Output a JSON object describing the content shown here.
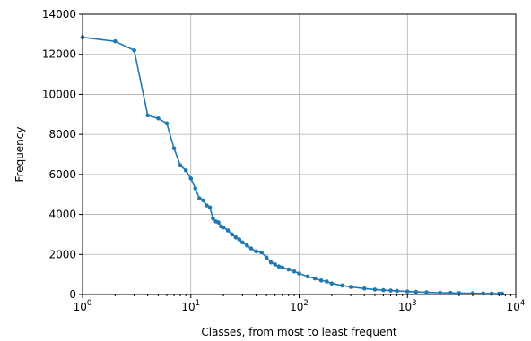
{
  "chart_data": {
    "type": "line",
    "title": "",
    "xlabel": "Classes, from most to least frequent",
    "ylabel": "Frequency",
    "xscale": "log",
    "xlim": [
      1,
      10000
    ],
    "ylim": [
      0,
      14000
    ],
    "grid": true,
    "x_ticks": [
      {
        "value": 1,
        "base": "10",
        "exp": "0"
      },
      {
        "value": 10,
        "base": "10",
        "exp": "1"
      },
      {
        "value": 100,
        "base": "10",
        "exp": "2"
      },
      {
        "value": 1000,
        "base": "10",
        "exp": "3"
      },
      {
        "value": 10000,
        "base": "10",
        "exp": "4"
      }
    ],
    "y_ticks": [
      {
        "value": 0,
        "label": "0"
      },
      {
        "value": 2000,
        "label": "2000"
      },
      {
        "value": 4000,
        "label": "4000"
      },
      {
        "value": 6000,
        "label": "6000"
      },
      {
        "value": 8000,
        "label": "8000"
      },
      {
        "value": 10000,
        "label": "10000"
      },
      {
        "value": 12000,
        "label": "12000"
      },
      {
        "value": 14000,
        "label": "14000"
      }
    ],
    "series": [
      {
        "color": "#1f77b4",
        "x": [
          1,
          2,
          3,
          4,
          5,
          6,
          7,
          8,
          9,
          10,
          11,
          12,
          13,
          14,
          15,
          16,
          17,
          18,
          19,
          20,
          22,
          24,
          26,
          28,
          30,
          33,
          36,
          40,
          45,
          50,
          55,
          60,
          65,
          70,
          80,
          90,
          100,
          120,
          140,
          160,
          180,
          200,
          250,
          300,
          400,
          500,
          600,
          700,
          800,
          1000,
          1200,
          1500,
          2000,
          2500,
          3000,
          4000,
          5000,
          6000,
          7000,
          7500
        ],
        "y": [
          12850,
          12650,
          12200,
          8950,
          8800,
          8550,
          7300,
          6450,
          6200,
          5800,
          5300,
          4800,
          4700,
          4450,
          4350,
          3800,
          3650,
          3600,
          3400,
          3350,
          3200,
          3000,
          2850,
          2750,
          2600,
          2450,
          2300,
          2150,
          2100,
          1850,
          1600,
          1500,
          1400,
          1350,
          1250,
          1150,
          1050,
          900,
          800,
          700,
          650,
          550,
          450,
          380,
          300,
          250,
          220,
          200,
          180,
          150,
          130,
          110,
          90,
          80,
          70,
          60,
          55,
          50,
          45,
          40
        ]
      }
    ]
  }
}
